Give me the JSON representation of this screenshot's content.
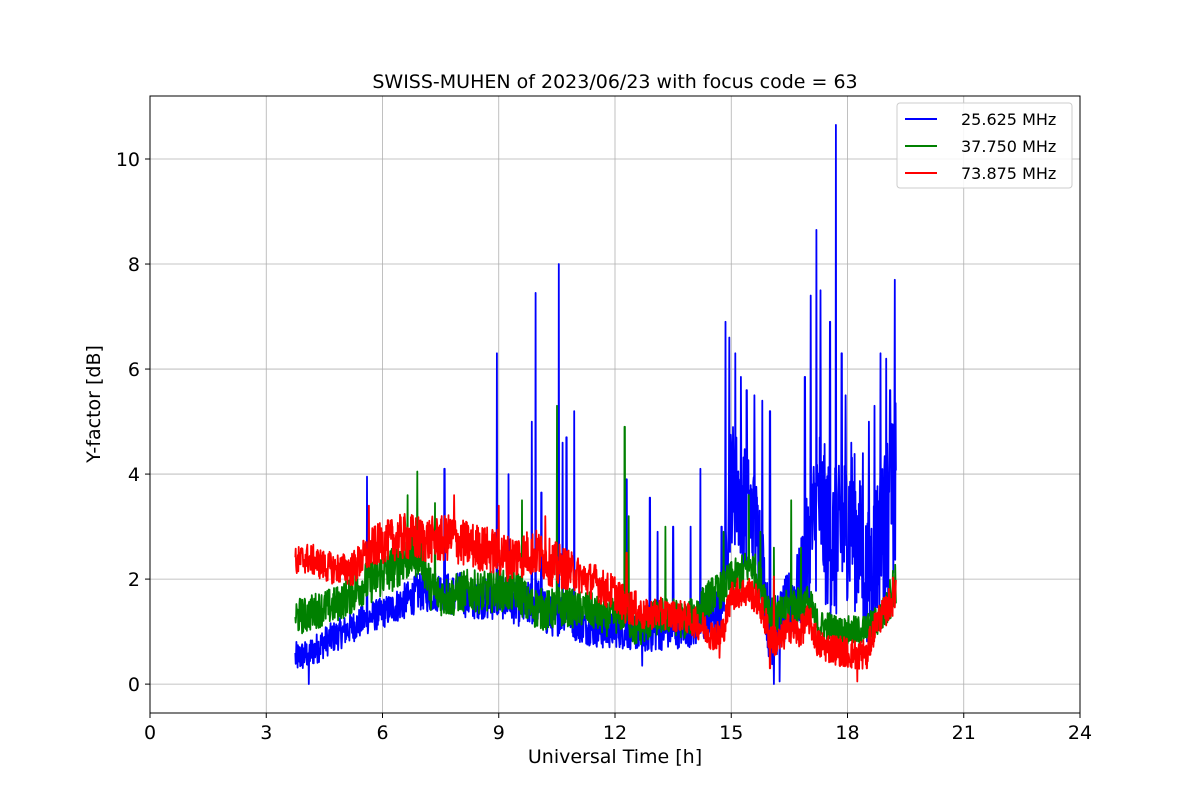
{
  "chart_data": {
    "type": "line",
    "title": "SWISS-MUHEN of 2023/06/23 with focus code = 63",
    "xlabel": "Universal Time [h]",
    "ylabel": "Y-factor [dB]",
    "xlim": [
      0,
      24
    ],
    "ylim": [
      -0.55,
      11.2
    ],
    "xticks": [
      0,
      3,
      6,
      9,
      12,
      15,
      18,
      21,
      24
    ],
    "yticks": [
      0,
      2,
      4,
      6,
      8,
      10
    ],
    "grid": true,
    "legend_position": "top-right",
    "series": [
      {
        "name": "25.625 MHz",
        "color": "#0000ff",
        "x": [
          3.75,
          4.0,
          4.25,
          4.5,
          4.75,
          5.0,
          5.25,
          5.5,
          5.75,
          6.0,
          6.25,
          6.5,
          6.75,
          7.0,
          7.25,
          7.5,
          7.75,
          8.0,
          8.25,
          8.5,
          8.75,
          9.0,
          9.25,
          9.5,
          9.75,
          10.0,
          10.25,
          10.5,
          10.75,
          11.0,
          11.25,
          11.5,
          11.75,
          12.0,
          12.25,
          12.5,
          12.75,
          13.0,
          13.25,
          13.5,
          13.75,
          14.0,
          14.25,
          14.5,
          14.75,
          15.0,
          15.25,
          15.5,
          15.75,
          16.0,
          16.25,
          16.5,
          16.75,
          17.0,
          17.25,
          17.5,
          17.75,
          18.0,
          18.25,
          18.5,
          18.75,
          19.0,
          19.25
        ],
        "mean": [
          0.5,
          0.55,
          0.65,
          0.8,
          0.9,
          1.0,
          1.1,
          1.2,
          1.3,
          1.35,
          1.45,
          1.55,
          1.65,
          1.8,
          1.75,
          1.8,
          1.7,
          1.75,
          1.6,
          1.65,
          1.6,
          1.65,
          1.6,
          1.5,
          1.5,
          1.6,
          1.3,
          1.3,
          1.45,
          1.2,
          1.1,
          1.05,
          1.0,
          1.05,
          1.0,
          1.0,
          0.95,
          1.0,
          1.05,
          1.05,
          1.1,
          1.1,
          1.15,
          1.3,
          1.4,
          3.9,
          3.5,
          3.2,
          2.7,
          0.8,
          1.2,
          1.5,
          1.8,
          2.5,
          3.5,
          2.8,
          2.6,
          3.2,
          2.8,
          2.0,
          2.6,
          3.0,
          3.6
        ],
        "spread": [
          0.3,
          0.3,
          0.3,
          0.3,
          0.3,
          0.3,
          0.3,
          0.3,
          0.3,
          0.3,
          0.3,
          0.35,
          0.35,
          0.4,
          0.4,
          0.4,
          0.4,
          0.4,
          0.4,
          0.4,
          0.4,
          0.4,
          0.4,
          0.4,
          0.45,
          0.45,
          0.4,
          0.4,
          0.4,
          0.4,
          0.35,
          0.35,
          0.35,
          0.35,
          0.35,
          0.35,
          0.35,
          0.4,
          0.4,
          0.4,
          0.4,
          0.4,
          0.4,
          0.45,
          0.5,
          1.2,
          1.2,
          1.1,
          1.0,
          0.5,
          0.6,
          0.7,
          0.8,
          1.3,
          1.6,
          1.5,
          1.5,
          1.6,
          1.5,
          1.2,
          1.5,
          1.6,
          1.8
        ],
        "spikes": [
          [
            4.1,
            0.0
          ],
          [
            5.6,
            3.95
          ],
          [
            7.6,
            4.1
          ],
          [
            8.95,
            6.3
          ],
          [
            9.25,
            4.0
          ],
          [
            9.85,
            5.0
          ],
          [
            9.95,
            7.45
          ],
          [
            10.1,
            3.65
          ],
          [
            10.55,
            8.0
          ],
          [
            10.65,
            4.6
          ],
          [
            10.75,
            4.7
          ],
          [
            10.95,
            5.2
          ],
          [
            12.3,
            3.9
          ],
          [
            12.7,
            0.35
          ],
          [
            12.9,
            3.55
          ],
          [
            13.1,
            2.9
          ],
          [
            13.5,
            3.0
          ],
          [
            13.95,
            3.0
          ],
          [
            14.2,
            4.1
          ],
          [
            14.75,
            3.0
          ],
          [
            14.85,
            6.9
          ],
          [
            14.95,
            6.6
          ],
          [
            15.1,
            6.3
          ],
          [
            15.25,
            5.85
          ],
          [
            15.4,
            5.6
          ],
          [
            15.6,
            5.5
          ],
          [
            15.8,
            5.4
          ],
          [
            16.0,
            5.2
          ],
          [
            16.1,
            0.0
          ],
          [
            16.25,
            0.05
          ],
          [
            16.9,
            5.85
          ],
          [
            17.05,
            7.4
          ],
          [
            17.2,
            8.65
          ],
          [
            17.3,
            7.5
          ],
          [
            17.55,
            6.9
          ],
          [
            17.7,
            10.65
          ],
          [
            17.85,
            6.3
          ],
          [
            17.95,
            5.5
          ],
          [
            18.1,
            4.6
          ],
          [
            18.4,
            4.4
          ],
          [
            18.45,
            1.0
          ],
          [
            18.55,
            5.0
          ],
          [
            18.7,
            5.3
          ],
          [
            18.85,
            6.3
          ],
          [
            19.0,
            6.2
          ],
          [
            19.1,
            5.6
          ],
          [
            19.22,
            7.7
          ],
          [
            19.28,
            7.0
          ]
        ]
      },
      {
        "name": "37.750 MHz",
        "color": "#008000",
        "x": [
          3.75,
          4.0,
          4.25,
          4.5,
          4.75,
          5.0,
          5.25,
          5.5,
          5.75,
          6.0,
          6.25,
          6.5,
          6.75,
          7.0,
          7.25,
          7.5,
          7.75,
          8.0,
          8.25,
          8.5,
          8.75,
          9.0,
          9.25,
          9.5,
          9.75,
          10.0,
          10.25,
          10.5,
          10.75,
          11.0,
          11.25,
          11.5,
          11.75,
          12.0,
          12.25,
          12.5,
          12.75,
          13.0,
          13.25,
          13.5,
          13.75,
          14.0,
          14.25,
          14.5,
          14.75,
          15.0,
          15.25,
          15.5,
          15.75,
          16.0,
          16.25,
          16.5,
          16.75,
          17.0,
          17.25,
          17.5,
          17.75,
          18.0,
          18.25,
          18.5,
          18.75,
          19.0,
          19.25
        ],
        "mean": [
          1.3,
          1.3,
          1.4,
          1.45,
          1.5,
          1.6,
          1.75,
          1.9,
          2.0,
          2.1,
          2.2,
          2.35,
          2.45,
          2.5,
          1.8,
          1.7,
          1.65,
          1.75,
          1.8,
          1.75,
          1.75,
          1.8,
          1.75,
          1.8,
          1.5,
          1.45,
          1.4,
          1.45,
          1.5,
          1.4,
          1.45,
          1.35,
          1.25,
          1.3,
          1.35,
          1.05,
          1.1,
          1.25,
          1.3,
          1.3,
          1.2,
          1.3,
          1.5,
          1.7,
          1.8,
          2.0,
          2.1,
          2.3,
          1.95,
          1.4,
          1.3,
          1.5,
          1.5,
          1.55,
          1.1,
          1.1,
          1.0,
          1.0,
          1.0,
          1.05,
          1.2,
          1.4,
          2.0
        ],
        "spread": [
          0.35,
          0.35,
          0.35,
          0.35,
          0.35,
          0.35,
          0.4,
          0.4,
          0.45,
          0.45,
          0.45,
          0.45,
          0.45,
          0.45,
          0.4,
          0.4,
          0.4,
          0.4,
          0.4,
          0.4,
          0.4,
          0.4,
          0.4,
          0.4,
          0.4,
          0.4,
          0.4,
          0.4,
          0.4,
          0.35,
          0.35,
          0.35,
          0.35,
          0.35,
          0.35,
          0.35,
          0.35,
          0.35,
          0.35,
          0.35,
          0.35,
          0.35,
          0.35,
          0.35,
          0.35,
          0.35,
          0.35,
          0.35,
          0.35,
          0.35,
          0.35,
          0.35,
          0.35,
          0.35,
          0.3,
          0.3,
          0.3,
          0.3,
          0.3,
          0.3,
          0.3,
          0.35,
          0.5
        ],
        "spikes": [
          [
            6.65,
            3.6
          ],
          [
            6.9,
            4.05
          ],
          [
            7.35,
            3.45
          ],
          [
            9.6,
            3.5
          ],
          [
            10.5,
            5.3
          ],
          [
            12.25,
            4.9
          ],
          [
            12.35,
            3.2
          ],
          [
            13.3,
            3.0
          ],
          [
            14.8,
            2.9
          ],
          [
            15.45,
            3.6
          ],
          [
            15.75,
            2.9
          ],
          [
            16.1,
            2.6
          ],
          [
            16.55,
            3.5
          ],
          [
            16.8,
            2.6
          ],
          [
            19.3,
            3.1
          ]
        ]
      },
      {
        "name": "73.875 MHz",
        "color": "#ff0000",
        "x": [
          3.75,
          4.0,
          4.25,
          4.5,
          4.75,
          5.0,
          5.25,
          5.5,
          5.75,
          6.0,
          6.25,
          6.5,
          6.75,
          7.0,
          7.25,
          7.5,
          7.75,
          8.0,
          8.25,
          8.5,
          8.75,
          9.0,
          9.25,
          9.5,
          9.75,
          10.0,
          10.25,
          10.5,
          10.75,
          11.0,
          11.25,
          11.5,
          11.75,
          12.0,
          12.25,
          12.5,
          12.75,
          13.0,
          13.25,
          13.5,
          13.75,
          14.0,
          14.25,
          14.5,
          14.75,
          15.0,
          15.25,
          15.5,
          15.75,
          16.0,
          16.25,
          16.5,
          16.75,
          17.0,
          17.25,
          17.5,
          17.75,
          18.0,
          18.25,
          18.5,
          18.75,
          19.0,
          19.25
        ],
        "mean": [
          2.3,
          2.4,
          2.35,
          2.25,
          2.2,
          2.2,
          2.2,
          2.4,
          2.6,
          2.7,
          2.75,
          2.8,
          2.8,
          2.75,
          2.75,
          2.75,
          2.8,
          2.7,
          2.65,
          2.6,
          2.55,
          2.5,
          2.4,
          2.45,
          2.5,
          2.5,
          2.35,
          2.25,
          2.2,
          2.1,
          2.0,
          1.95,
          1.8,
          1.75,
          1.5,
          1.45,
          1.3,
          1.35,
          1.35,
          1.3,
          1.3,
          1.2,
          1.1,
          0.95,
          0.9,
          1.7,
          1.75,
          1.75,
          1.5,
          0.9,
          0.8,
          1.1,
          0.95,
          1.25,
          0.75,
          0.7,
          0.65,
          0.6,
          0.55,
          0.6,
          1.2,
          1.4,
          1.8
        ],
        "spread": [
          0.3,
          0.3,
          0.3,
          0.3,
          0.3,
          0.3,
          0.35,
          0.35,
          0.4,
          0.4,
          0.4,
          0.45,
          0.45,
          0.45,
          0.45,
          0.45,
          0.45,
          0.45,
          0.45,
          0.45,
          0.45,
          0.45,
          0.45,
          0.45,
          0.45,
          0.45,
          0.45,
          0.45,
          0.4,
          0.35,
          0.35,
          0.35,
          0.35,
          0.35,
          0.35,
          0.35,
          0.3,
          0.3,
          0.3,
          0.3,
          0.3,
          0.3,
          0.3,
          0.3,
          0.3,
          0.3,
          0.3,
          0.3,
          0.3,
          0.35,
          0.3,
          0.3,
          0.3,
          0.3,
          0.3,
          0.3,
          0.3,
          0.3,
          0.3,
          0.3,
          0.3,
          0.3,
          0.4
        ],
        "spikes": [
          [
            5.65,
            3.4
          ],
          [
            7.85,
            3.6
          ],
          [
            9.0,
            3.4
          ],
          [
            10.2,
            3.2
          ],
          [
            12.3,
            2.5
          ],
          [
            14.7,
            0.5
          ],
          [
            14.75,
            1.2
          ],
          [
            16.0,
            0.3
          ],
          [
            16.1,
            2.05
          ],
          [
            18.25,
            0.05
          ],
          [
            18.5,
            0.3
          ],
          [
            19.3,
            2.7
          ]
        ]
      }
    ]
  }
}
